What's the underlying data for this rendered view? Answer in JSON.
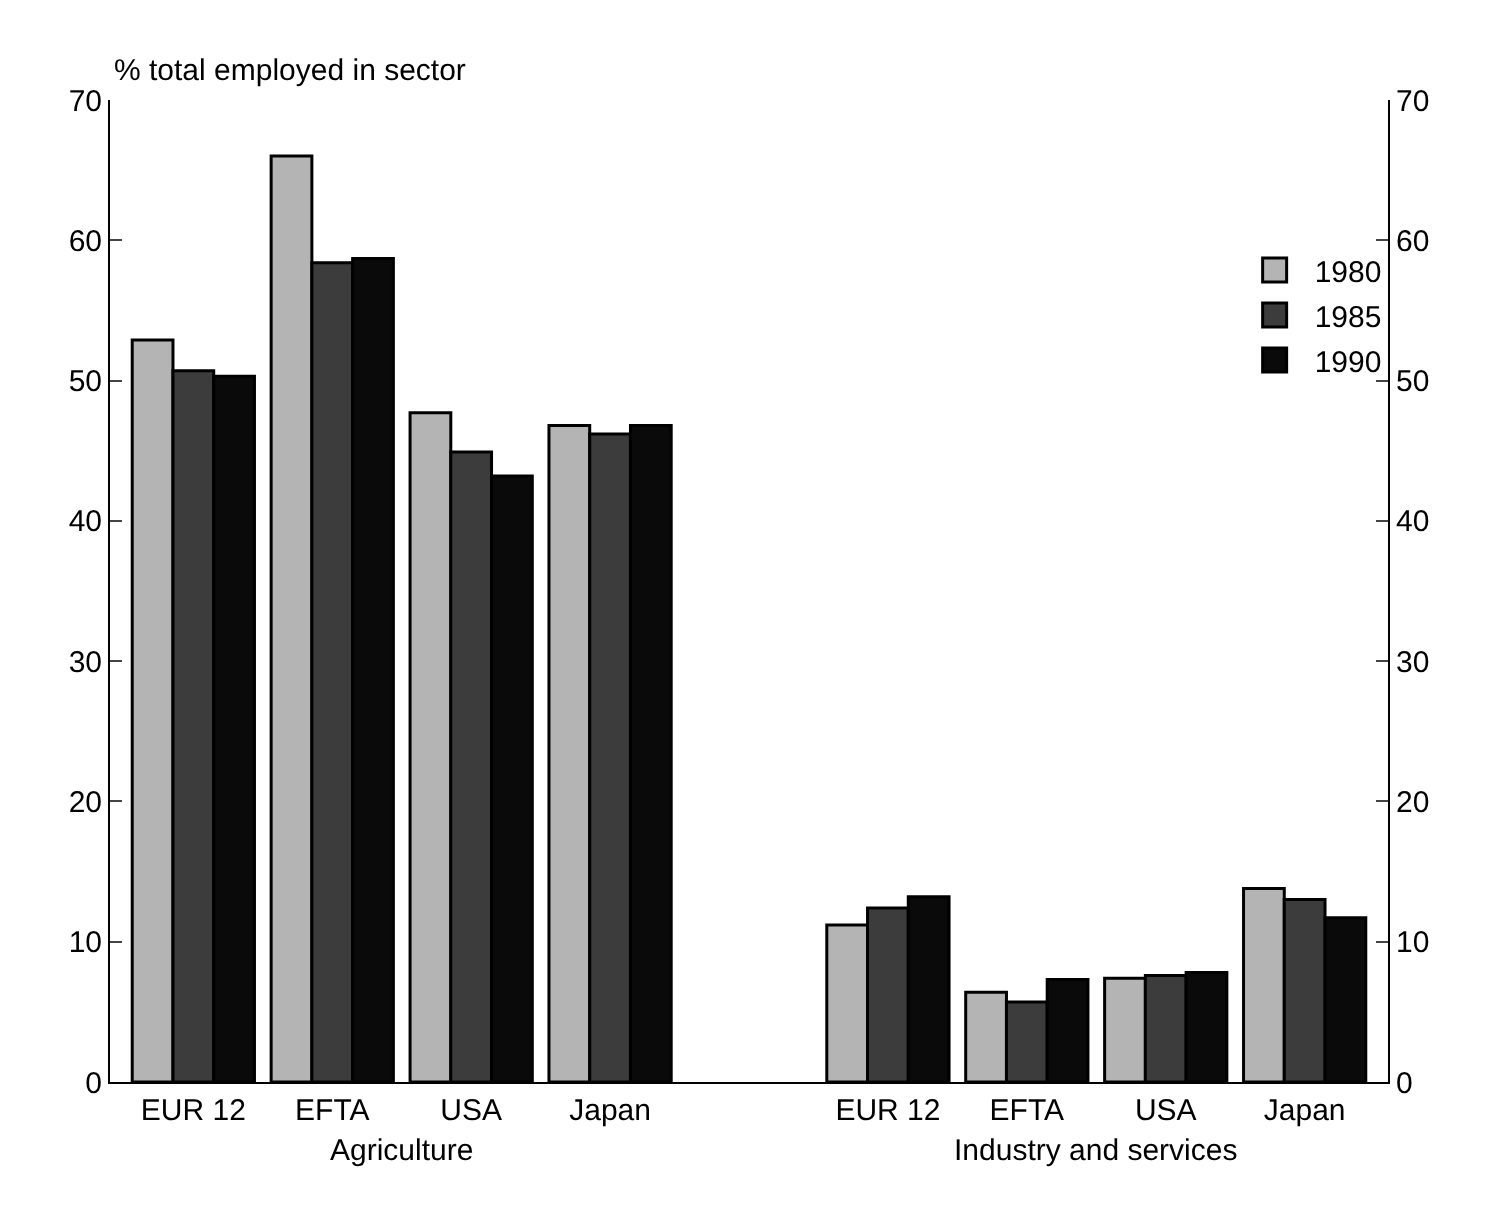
{
  "chart_data": {
    "type": "bar",
    "ylabel": "% total employed in sector",
    "categories": [
      "EUR 12",
      "EFTA",
      "USA",
      "Japan",
      null,
      "EUR 12",
      "EFTA",
      "USA",
      "Japan"
    ],
    "series": [
      {
        "name": "1980",
        "color": "#b4b4b4",
        "values": [
          52.9,
          66.0,
          47.7,
          46.8,
          null,
          11.2,
          6.4,
          7.4,
          13.8
        ]
      },
      {
        "name": "1985",
        "color": "#3c3c3c",
        "values": [
          50.7,
          58.4,
          44.9,
          46.2,
          null,
          12.4,
          5.7,
          7.6,
          13.0
        ]
      },
      {
        "name": "1990",
        "color": "#0a0a0a",
        "values": [
          50.3,
          58.7,
          43.2,
          46.8,
          null,
          13.2,
          7.3,
          7.8,
          11.7
        ]
      }
    ],
    "ylim": [
      0,
      70
    ],
    "yticks": [
      0,
      10,
      20,
      30,
      40,
      50,
      60,
      70
    ],
    "y2lim": [
      0,
      70
    ],
    "y2ticks": [
      0,
      10,
      20,
      30,
      40,
      50,
      60,
      70
    ],
    "annotations": [
      "Agriculture",
      "Industry and services"
    ],
    "grid": false,
    "legend": "top right"
  }
}
